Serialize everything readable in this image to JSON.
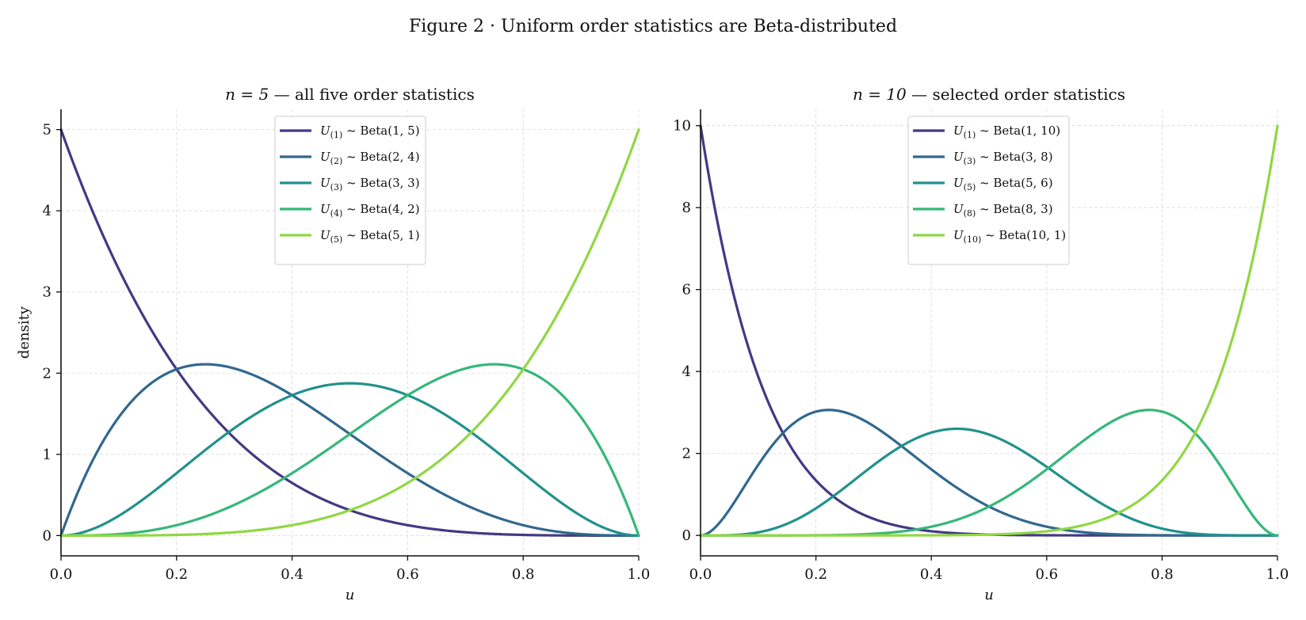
{
  "figure": {
    "title": "Figure 2 · Uniform order statistics are Beta-distributed"
  },
  "chart_data": [
    {
      "type": "line",
      "n": 5,
      "title_math": "n = 5",
      "title_text": " — all five order statistics",
      "xlabel": "u",
      "ylabel": "density",
      "xlim": [
        0,
        1
      ],
      "ylim": [
        -0.25,
        5.25
      ],
      "xticks": [
        "0.0",
        "0.2",
        "0.4",
        "0.6",
        "0.8",
        "1.0"
      ],
      "yticks": [
        "0",
        "1",
        "2",
        "3",
        "4",
        "5"
      ],
      "grid": true,
      "legend_position": "top-center",
      "series": [
        {
          "name": "U(1) ~ Beta(1,5)",
          "sub": "(1)",
          "beta": "Beta(1, 5)",
          "a": 1,
          "b": 5,
          "color": "#443983",
          "peak": 5.0
        },
        {
          "name": "U(2) ~ Beta(2,4)",
          "sub": "(2)",
          "beta": "Beta(2, 4)",
          "a": 2,
          "b": 4,
          "color": "#31688e",
          "peak": 2.11
        },
        {
          "name": "U(3) ~ Beta(3,3)",
          "sub": "(3)",
          "beta": "Beta(3, 3)",
          "a": 3,
          "b": 3,
          "color": "#21918c",
          "peak": 1.875
        },
        {
          "name": "U(4) ~ Beta(4,2)",
          "sub": "(4)",
          "beta": "Beta(4, 2)",
          "a": 4,
          "b": 2,
          "color": "#35b779",
          "peak": 2.11
        },
        {
          "name": "U(5) ~ Beta(5,1)",
          "sub": "(5)",
          "beta": "Beta(5, 1)",
          "a": 5,
          "b": 1,
          "color": "#90d743",
          "peak": 5.0
        }
      ]
    },
    {
      "type": "line",
      "n": 10,
      "title_math": "n = 10",
      "title_text": " — selected order statistics",
      "xlabel": "u",
      "ylabel": "",
      "xlim": [
        0,
        1
      ],
      "ylim": [
        -0.5,
        10.4
      ],
      "xticks": [
        "0.0",
        "0.2",
        "0.4",
        "0.6",
        "0.8",
        "1.0"
      ],
      "yticks": [
        "0",
        "2",
        "4",
        "6",
        "8",
        "10"
      ],
      "grid": true,
      "legend_position": "top-center",
      "series": [
        {
          "name": "U(1) ~ Beta(1,10)",
          "sub": "(1)",
          "beta": "Beta(1, 10)",
          "a": 1,
          "b": 10,
          "color": "#443983",
          "peak": 10.0
        },
        {
          "name": "U(3) ~ Beta(3,8)",
          "sub": "(3)",
          "beta": "Beta(3, 8)",
          "a": 3,
          "b": 8,
          "color": "#31688e",
          "peak": 3.05
        },
        {
          "name": "U(5) ~ Beta(5,6)",
          "sub": "(5)",
          "beta": "Beta(5, 6)",
          "a": 5,
          "b": 6,
          "color": "#21918c",
          "peak": 2.58
        },
        {
          "name": "U(8) ~ Beta(8,3)",
          "sub": "(8)",
          "beta": "Beta(8, 3)",
          "a": 8,
          "b": 3,
          "color": "#35b779",
          "peak": 3.05
        },
        {
          "name": "U(10) ~ Beta(10,1)",
          "sub": "(10)",
          "beta": "Beta(10, 1)",
          "a": 10,
          "b": 1,
          "color": "#90d743",
          "peak": 10.0
        }
      ]
    }
  ]
}
